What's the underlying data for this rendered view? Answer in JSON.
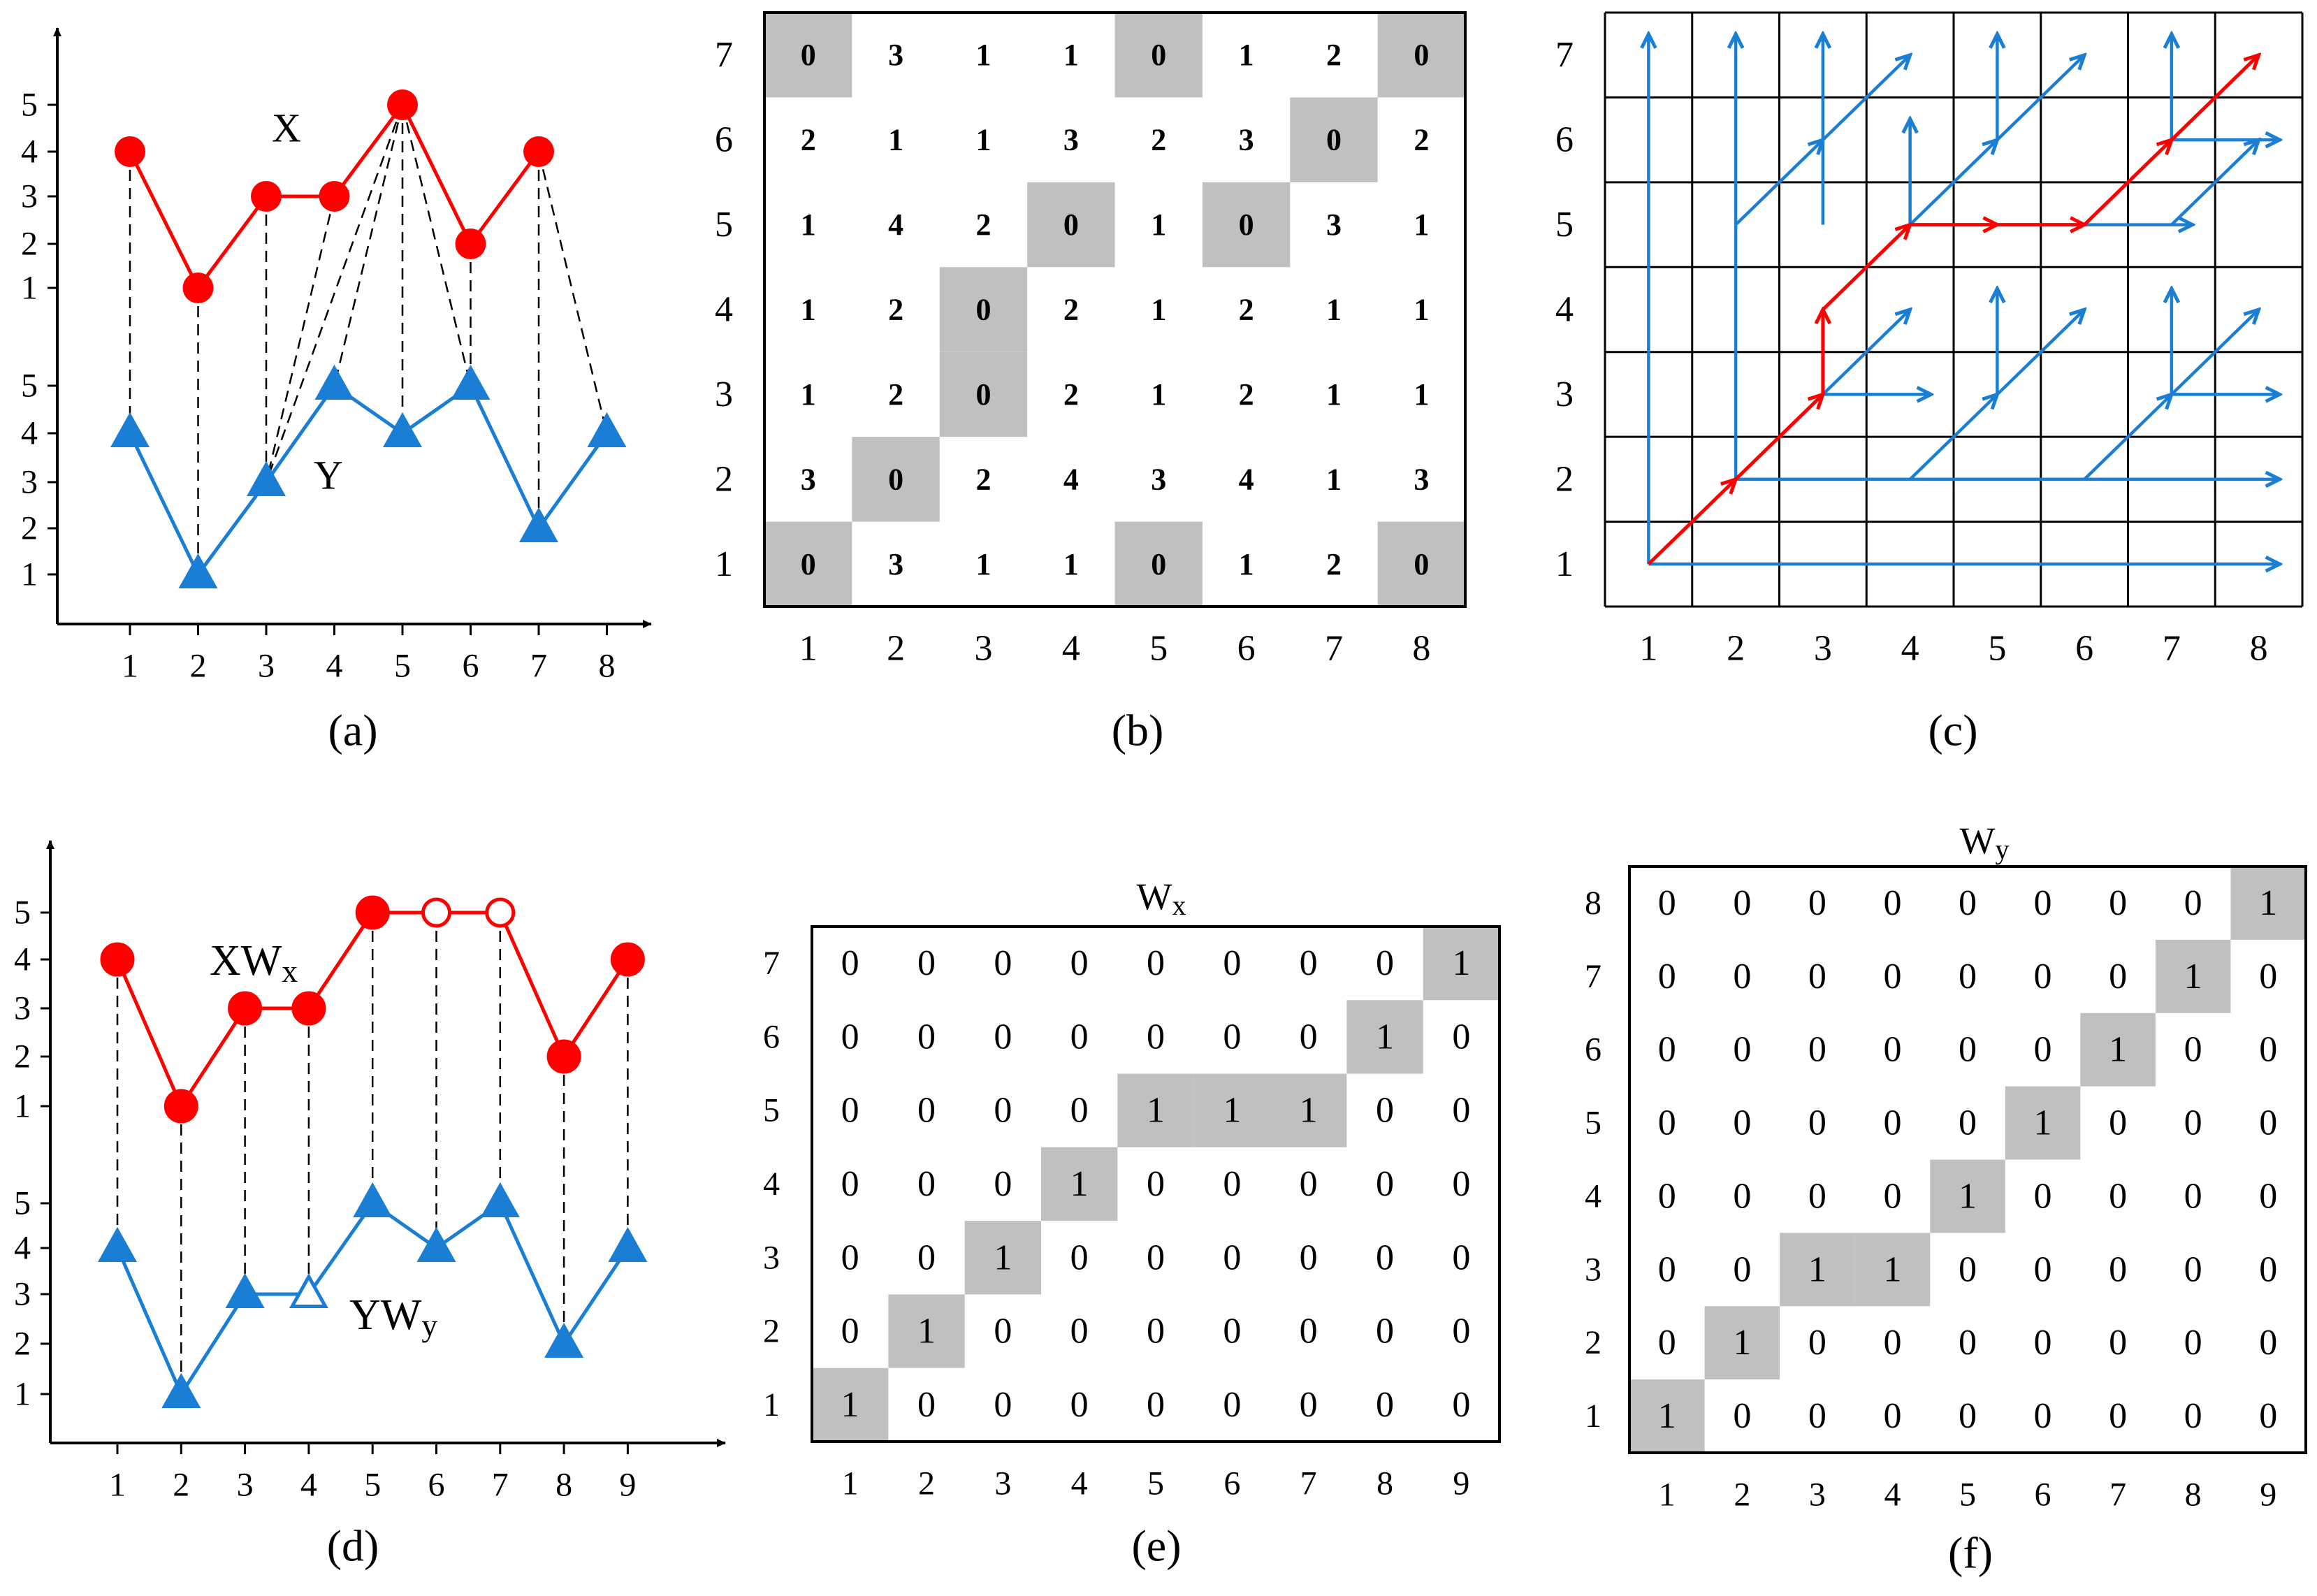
{
  "colors": {
    "red": "#ff0000",
    "blue": "#1a7fd4",
    "gray": "#c0c0c0",
    "black": "#000000"
  },
  "panel_a": {
    "caption": "(a)",
    "x_ticks": [
      "1",
      "2",
      "3",
      "4",
      "5",
      "6",
      "7",
      "8"
    ],
    "upper_ticks": [
      "1",
      "2",
      "3",
      "4",
      "5"
    ],
    "lower_ticks": [
      "1",
      "2",
      "3",
      "4",
      "5"
    ],
    "series_x_label": "X",
    "series_y_label": "Y",
    "series_x": [
      4,
      1,
      3,
      3,
      5,
      2,
      4
    ],
    "series_y": [
      4,
      1,
      3,
      5,
      4,
      5,
      2,
      4
    ],
    "links": [
      [
        1,
        1
      ],
      [
        2,
        2
      ],
      [
        3,
        3
      ],
      [
        4,
        3
      ],
      [
        5,
        3
      ],
      [
        5,
        4
      ],
      [
        5,
        5
      ],
      [
        5,
        6
      ],
      [
        6,
        6
      ],
      [
        7,
        7
      ],
      [
        7,
        8
      ]
    ]
  },
  "panel_b": {
    "caption": "(b)",
    "x_ticks": [
      "1",
      "2",
      "3",
      "4",
      "5",
      "6",
      "7",
      "8"
    ],
    "y_ticks": [
      "1",
      "2",
      "3",
      "4",
      "5",
      "6",
      "7"
    ],
    "rows_top_to_bottom": [
      [
        "0",
        "3",
        "1",
        "1",
        "0",
        "1",
        "2",
        "0"
      ],
      [
        "2",
        "1",
        "1",
        "3",
        "2",
        "3",
        "0",
        "2"
      ],
      [
        "1",
        "4",
        "2",
        "0",
        "1",
        "0",
        "3",
        "1"
      ],
      [
        "1",
        "2",
        "0",
        "2",
        "1",
        "2",
        "1",
        "1"
      ],
      [
        "1",
        "2",
        "0",
        "2",
        "1",
        "2",
        "1",
        "1"
      ],
      [
        "3",
        "0",
        "2",
        "4",
        "3",
        "4",
        "1",
        "3"
      ],
      [
        "0",
        "3",
        "1",
        "1",
        "0",
        "1",
        "2",
        "0"
      ]
    ]
  },
  "panel_c": {
    "caption": "(c)",
    "x_ticks": [
      "1",
      "2",
      "3",
      "4",
      "5",
      "6",
      "7",
      "8"
    ],
    "y_ticks": [
      "1",
      "2",
      "3",
      "4",
      "5",
      "6",
      "7"
    ],
    "red_path": [
      [
        1,
        1
      ],
      [
        2,
        2
      ],
      [
        3,
        3
      ],
      [
        3,
        4
      ],
      [
        4,
        5
      ],
      [
        5,
        5
      ],
      [
        6,
        5
      ],
      [
        7,
        6
      ],
      [
        8,
        7
      ]
    ],
    "blue_arrows": [
      [
        [
          1,
          1
        ],
        [
          1,
          7
        ]
      ],
      [
        [
          1,
          1
        ],
        [
          8,
          1
        ]
      ],
      [
        [
          2,
          2
        ],
        [
          2,
          7
        ]
      ],
      [
        [
          2,
          2
        ],
        [
          8,
          2
        ]
      ],
      [
        [
          2,
          5
        ],
        [
          3,
          6
        ]
      ],
      [
        [
          3,
          5
        ],
        [
          3,
          7
        ]
      ],
      [
        [
          3,
          6
        ],
        [
          4,
          7
        ]
      ],
      [
        [
          4,
          5
        ],
        [
          4,
          6
        ]
      ],
      [
        [
          4,
          5
        ],
        [
          5,
          6
        ]
      ],
      [
        [
          5,
          6
        ],
        [
          5,
          7
        ]
      ],
      [
        [
          5,
          6
        ],
        [
          6,
          7
        ]
      ],
      [
        [
          6,
          5
        ],
        [
          7,
          5
        ]
      ],
      [
        [
          7,
          6
        ],
        [
          7,
          7
        ]
      ],
      [
        [
          7,
          6
        ],
        [
          8,
          6
        ]
      ],
      [
        [
          3,
          3
        ],
        [
          4,
          3
        ]
      ],
      [
        [
          3,
          3
        ],
        [
          4,
          4
        ]
      ],
      [
        [
          5,
          3
        ],
        [
          5,
          4
        ]
      ],
      [
        [
          5,
          3
        ],
        [
          6,
          4
        ]
      ],
      [
        [
          7,
          3
        ],
        [
          7,
          4
        ]
      ],
      [
        [
          7,
          3
        ],
        [
          8,
          4
        ]
      ],
      [
        [
          7,
          3
        ],
        [
          8,
          3
        ]
      ],
      [
        [
          4,
          2
        ],
        [
          5,
          3
        ]
      ],
      [
        [
          6,
          2
        ],
        [
          7,
          3
        ]
      ],
      [
        [
          7,
          5
        ],
        [
          8,
          6
        ]
      ]
    ]
  },
  "panel_d": {
    "caption": "(d)",
    "x_ticks": [
      "1",
      "2",
      "3",
      "4",
      "5",
      "6",
      "7",
      "8",
      "9"
    ],
    "upper_ticks": [
      "1",
      "2",
      "3",
      "4",
      "5"
    ],
    "lower_ticks": [
      "1",
      "2",
      "3",
      "4",
      "5"
    ],
    "series_x_label": "XW",
    "series_x_sub": "x",
    "series_y_label": "YW",
    "series_y_sub": "y",
    "series_xw": [
      4,
      1,
      3,
      3,
      5,
      5,
      5,
      2,
      4
    ],
    "series_xw_hollow": [
      6,
      7
    ],
    "series_yw": [
      4,
      1,
      3,
      3,
      5,
      4,
      5,
      2,
      4
    ],
    "series_yw_hollow": [
      4
    ]
  },
  "panel_e": {
    "caption": "(e)",
    "title": "W",
    "title_sub": "x",
    "x_ticks": [
      "1",
      "2",
      "3",
      "4",
      "5",
      "6",
      "7",
      "8",
      "9"
    ],
    "y_ticks": [
      "1",
      "2",
      "3",
      "4",
      "5",
      "6",
      "7"
    ],
    "rows_top_to_bottom": [
      [
        "0",
        "0",
        "0",
        "0",
        "0",
        "0",
        "0",
        "0",
        "1"
      ],
      [
        "0",
        "0",
        "0",
        "0",
        "0",
        "0",
        "0",
        "1",
        "0"
      ],
      [
        "0",
        "0",
        "0",
        "0",
        "1",
        "1",
        "1",
        "0",
        "0"
      ],
      [
        "0",
        "0",
        "0",
        "1",
        "0",
        "0",
        "0",
        "0",
        "0"
      ],
      [
        "0",
        "0",
        "1",
        "0",
        "0",
        "0",
        "0",
        "0",
        "0"
      ],
      [
        "0",
        "1",
        "0",
        "0",
        "0",
        "0",
        "0",
        "0",
        "0"
      ],
      [
        "1",
        "0",
        "0",
        "0",
        "0",
        "0",
        "0",
        "0",
        "0"
      ]
    ]
  },
  "panel_f": {
    "caption": "(f)",
    "title": "W",
    "title_sub": "y",
    "x_ticks": [
      "1",
      "2",
      "3",
      "4",
      "5",
      "6",
      "7",
      "8",
      "9"
    ],
    "y_ticks": [
      "1",
      "2",
      "3",
      "4",
      "5",
      "6",
      "7",
      "8"
    ],
    "rows_top_to_bottom": [
      [
        "0",
        "0",
        "0",
        "0",
        "0",
        "0",
        "0",
        "0",
        "1"
      ],
      [
        "0",
        "0",
        "0",
        "0",
        "0",
        "0",
        "0",
        "1",
        "0"
      ],
      [
        "0",
        "0",
        "0",
        "0",
        "0",
        "0",
        "1",
        "0",
        "0"
      ],
      [
        "0",
        "0",
        "0",
        "0",
        "0",
        "1",
        "0",
        "0",
        "0"
      ],
      [
        "0",
        "0",
        "0",
        "0",
        "1",
        "0",
        "0",
        "0",
        "0"
      ],
      [
        "0",
        "0",
        "1",
        "1",
        "0",
        "0",
        "0",
        "0",
        "0"
      ],
      [
        "0",
        "1",
        "0",
        "0",
        "0",
        "0",
        "0",
        "0",
        "0"
      ],
      [
        "1",
        "0",
        "0",
        "0",
        "0",
        "0",
        "0",
        "0",
        "0"
      ]
    ]
  }
}
